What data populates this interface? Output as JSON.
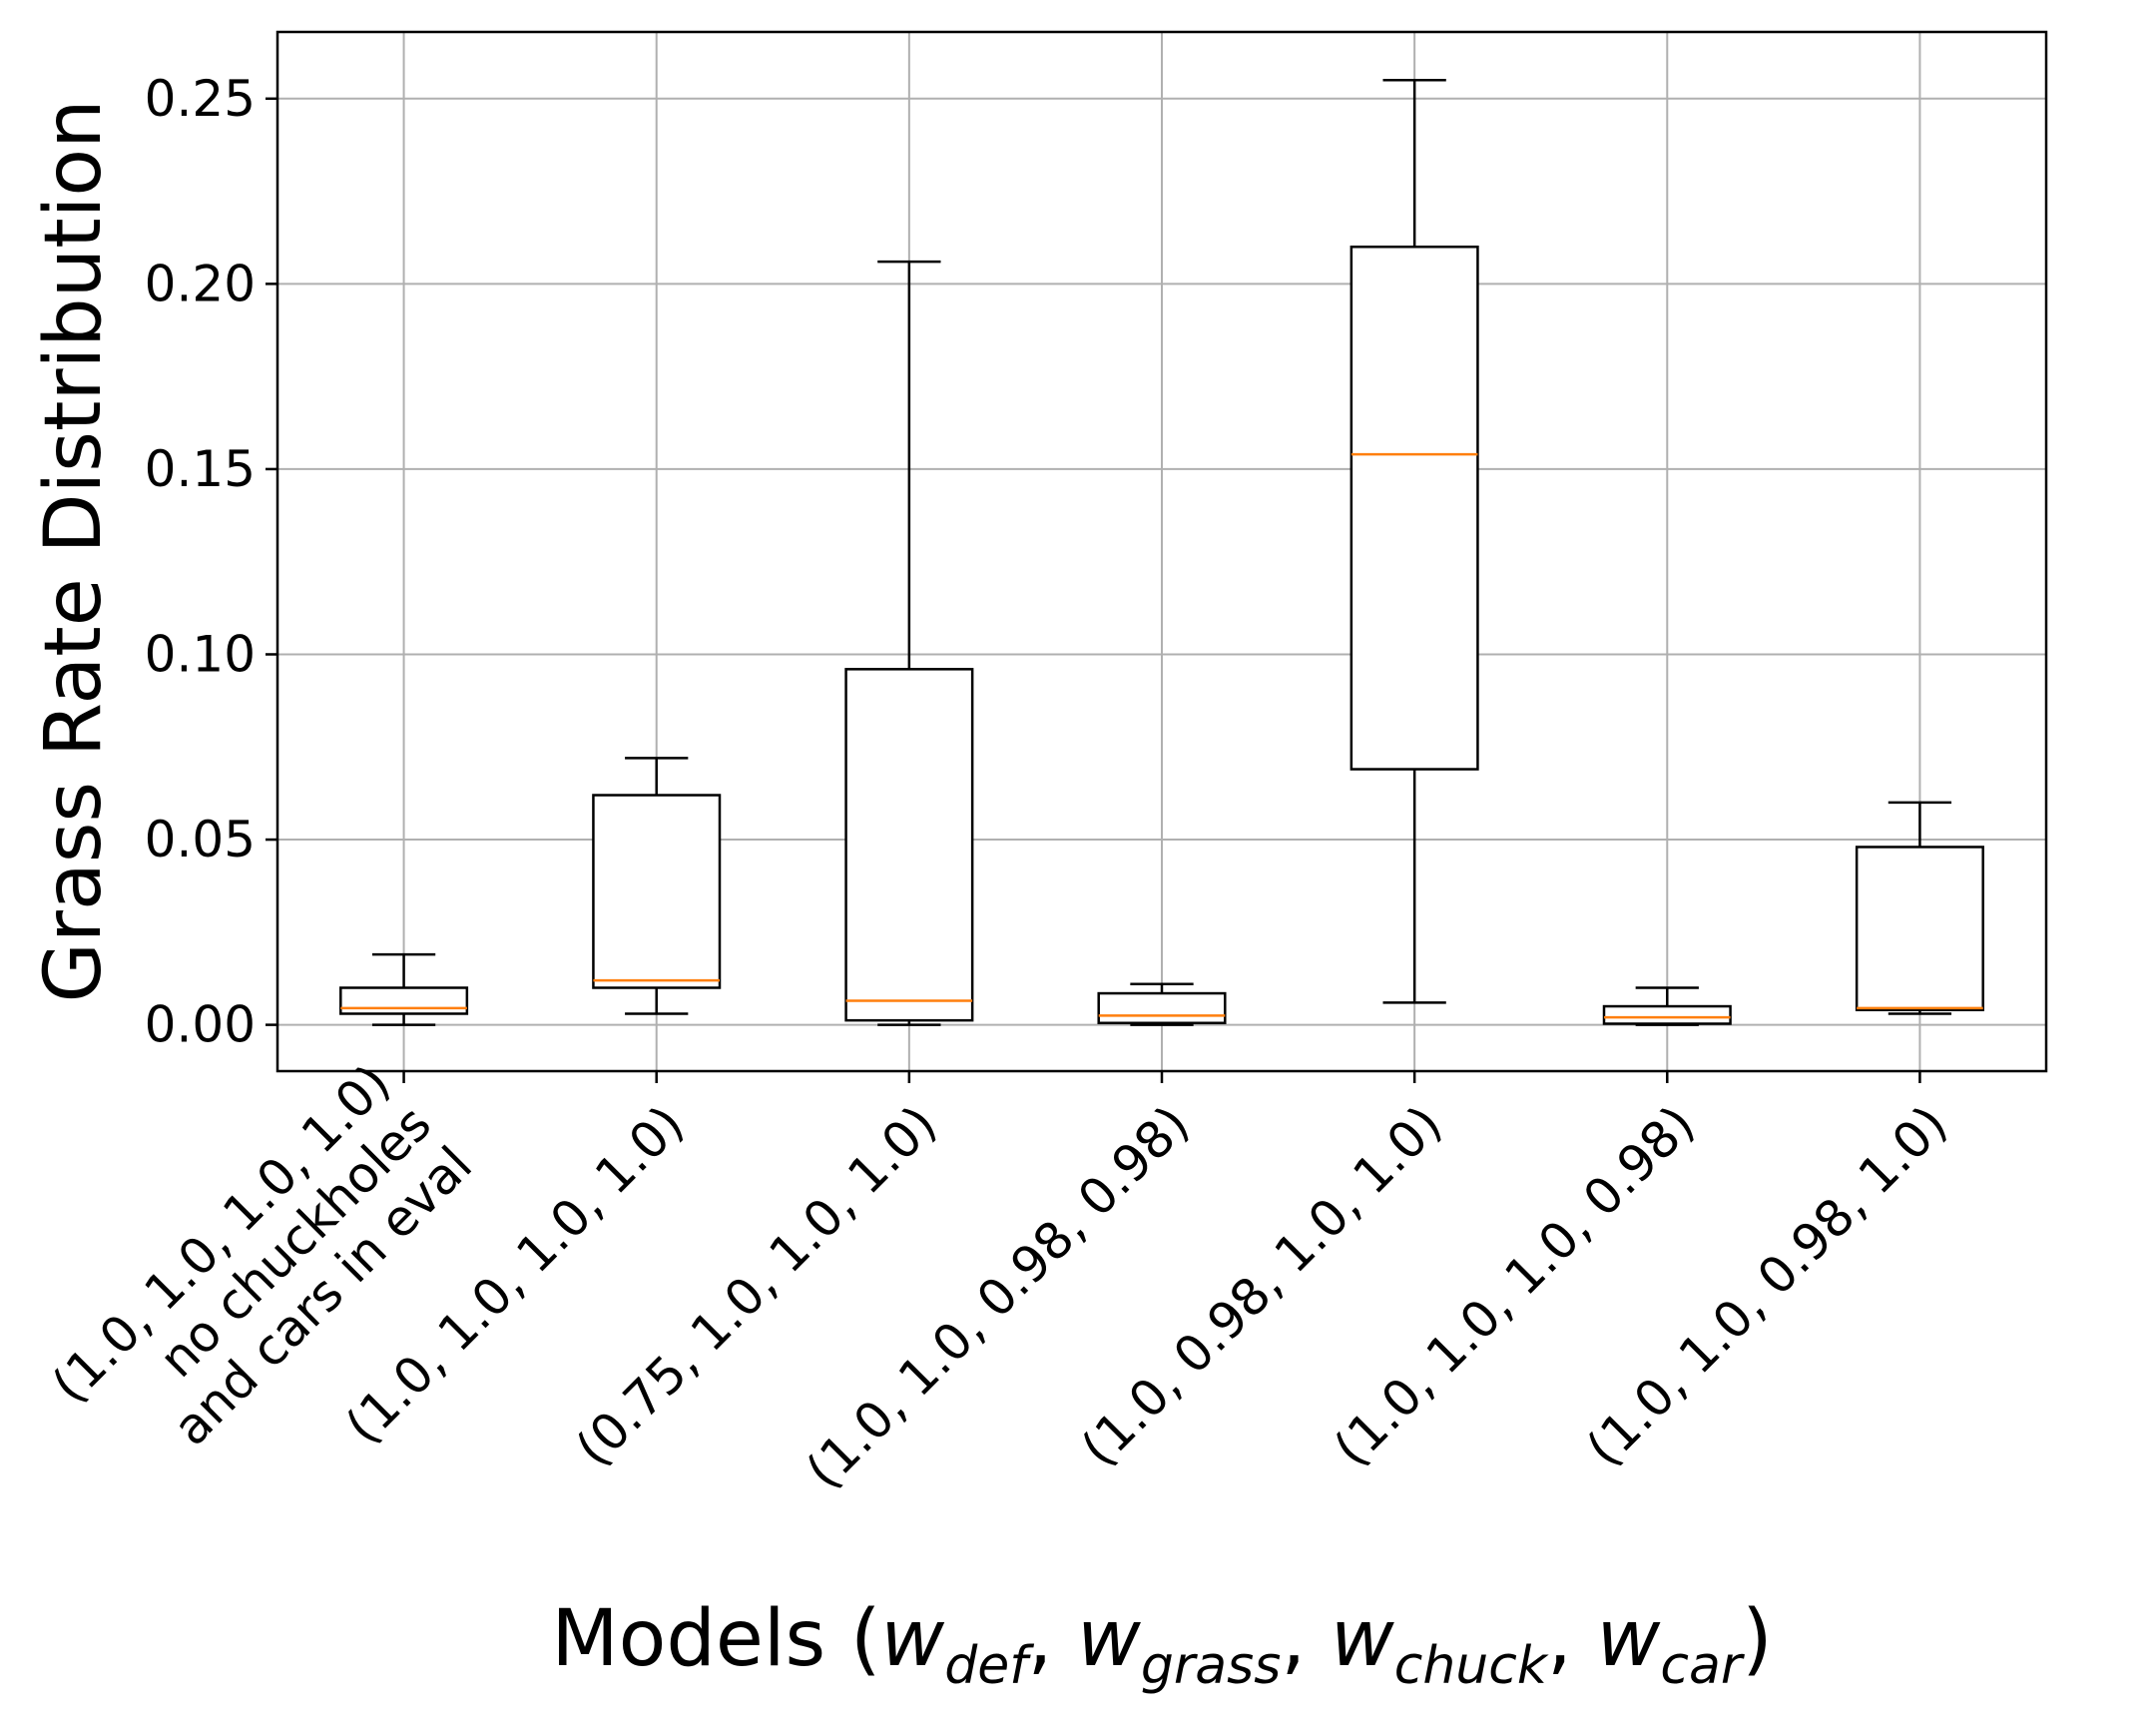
{
  "chart_data": {
    "type": "box",
    "title": "",
    "xlabel": {
      "main": "Models (",
      "parts": [
        {
          "w": "w",
          "sub": "def"
        },
        {
          "w": "w",
          "sub": "grass"
        },
        {
          "w": "w",
          "sub": "chuck"
        },
        {
          "w": "w",
          "sub": "car"
        }
      ],
      "sep": ", ",
      "close": ")"
    },
    "ylabel": "Grass Rate Distribution",
    "ylim": [
      -0.0125,
      0.268
    ],
    "yticks": [
      0.0,
      0.05,
      0.1,
      0.15,
      0.2,
      0.25
    ],
    "ytick_labels": [
      "0.00",
      "0.05",
      "0.10",
      "0.15",
      "0.20",
      "0.25"
    ],
    "grid": true,
    "colors": {
      "box": "#000000",
      "median": "#ff7f0e",
      "grid": "#b0b0b0"
    },
    "categories": [
      [
        "(1.0, 1.0, 1.0, 1.0)",
        "no chuckholes",
        "and cars in eval"
      ],
      [
        "(1.0, 1.0, 1.0, 1.0)"
      ],
      [
        "(0.75, 1.0, 1.0, 1.0)"
      ],
      [
        "(1.0, 1.0, 0.98, 0.98)"
      ],
      [
        "(1.0, 0.98, 1.0, 1.0)"
      ],
      [
        "(1.0, 1.0, 1.0, 0.98)"
      ],
      [
        "(1.0, 1.0, 0.98, 1.0)"
      ]
    ],
    "boxes": [
      {
        "whisker_low": 0.0,
        "q1": 0.003,
        "median": 0.0045,
        "q3": 0.01,
        "whisker_high": 0.019
      },
      {
        "whisker_low": 0.003,
        "q1": 0.01,
        "median": 0.012,
        "q3": 0.062,
        "whisker_high": 0.072
      },
      {
        "whisker_low": 0.0,
        "q1": 0.0012,
        "median": 0.0065,
        "q3": 0.096,
        "whisker_high": 0.206
      },
      {
        "whisker_low": 0.0,
        "q1": 0.0005,
        "median": 0.0025,
        "q3": 0.0085,
        "whisker_high": 0.011
      },
      {
        "whisker_low": 0.006,
        "q1": 0.069,
        "median": 0.154,
        "q3": 0.21,
        "whisker_high": 0.255
      },
      {
        "whisker_low": 0.0,
        "q1": 0.0003,
        "median": 0.002,
        "q3": 0.005,
        "whisker_high": 0.01
      },
      {
        "whisker_low": 0.003,
        "q1": 0.004,
        "median": 0.0045,
        "q3": 0.048,
        "whisker_high": 0.06
      }
    ]
  }
}
